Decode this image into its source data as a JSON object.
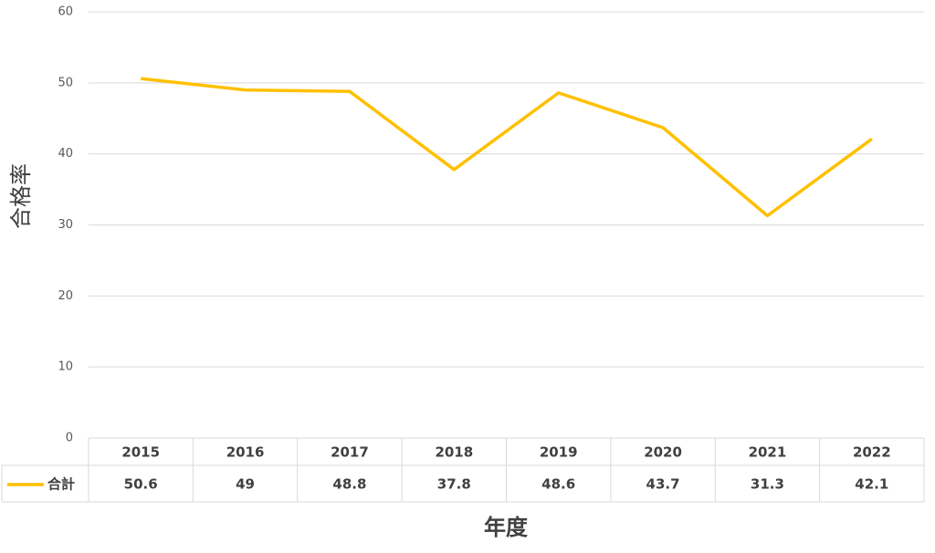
{
  "chart_data": {
    "type": "line",
    "y_label": "合格率",
    "x_label": "年度",
    "categories": [
      "2015",
      "2016",
      "2017",
      "2018",
      "2019",
      "2020",
      "2021",
      "2022"
    ],
    "series": [
      {
        "name": "合計",
        "color": "#ffc000",
        "values": [
          50.6,
          49,
          48.8,
          37.8,
          48.6,
          43.7,
          31.3,
          42.1
        ]
      }
    ],
    "ylim": [
      0,
      60
    ],
    "yticks": [
      0,
      10,
      20,
      30,
      40,
      50,
      60
    ],
    "grid": true,
    "data_table": true
  }
}
